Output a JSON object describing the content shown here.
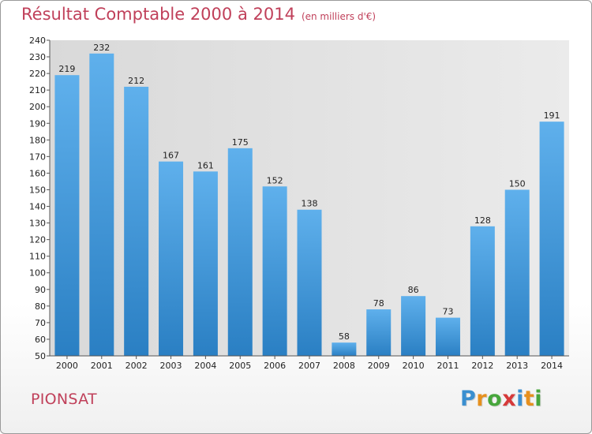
{
  "header": {
    "title": "Résultat Comptable 2000 à 2014",
    "subtitle": "(en milliers d'€)"
  },
  "footer": {
    "municipality": "PIONSAT",
    "logo_letters": [
      "P",
      "r",
      "o",
      "x",
      "i",
      "t",
      "i"
    ],
    "logo_colors": [
      "#3a8fd0",
      "#e6901e",
      "#47a63c",
      "#d63a3a",
      "#3a8fd0",
      "#e6901e",
      "#47a63c"
    ]
  },
  "chart_data": {
    "type": "bar",
    "categories": [
      "2000",
      "2001",
      "2002",
      "2003",
      "2004",
      "2005",
      "2006",
      "2007",
      "2008",
      "2009",
      "2010",
      "2011",
      "2012",
      "2013",
      "2014"
    ],
    "values": [
      219,
      232,
      212,
      167,
      161,
      175,
      152,
      138,
      58,
      78,
      86,
      73,
      128,
      150,
      191
    ],
    "ylim": [
      50,
      240
    ],
    "ytick_step": 10,
    "grid": false,
    "bar_color": "#3b93d8"
  }
}
